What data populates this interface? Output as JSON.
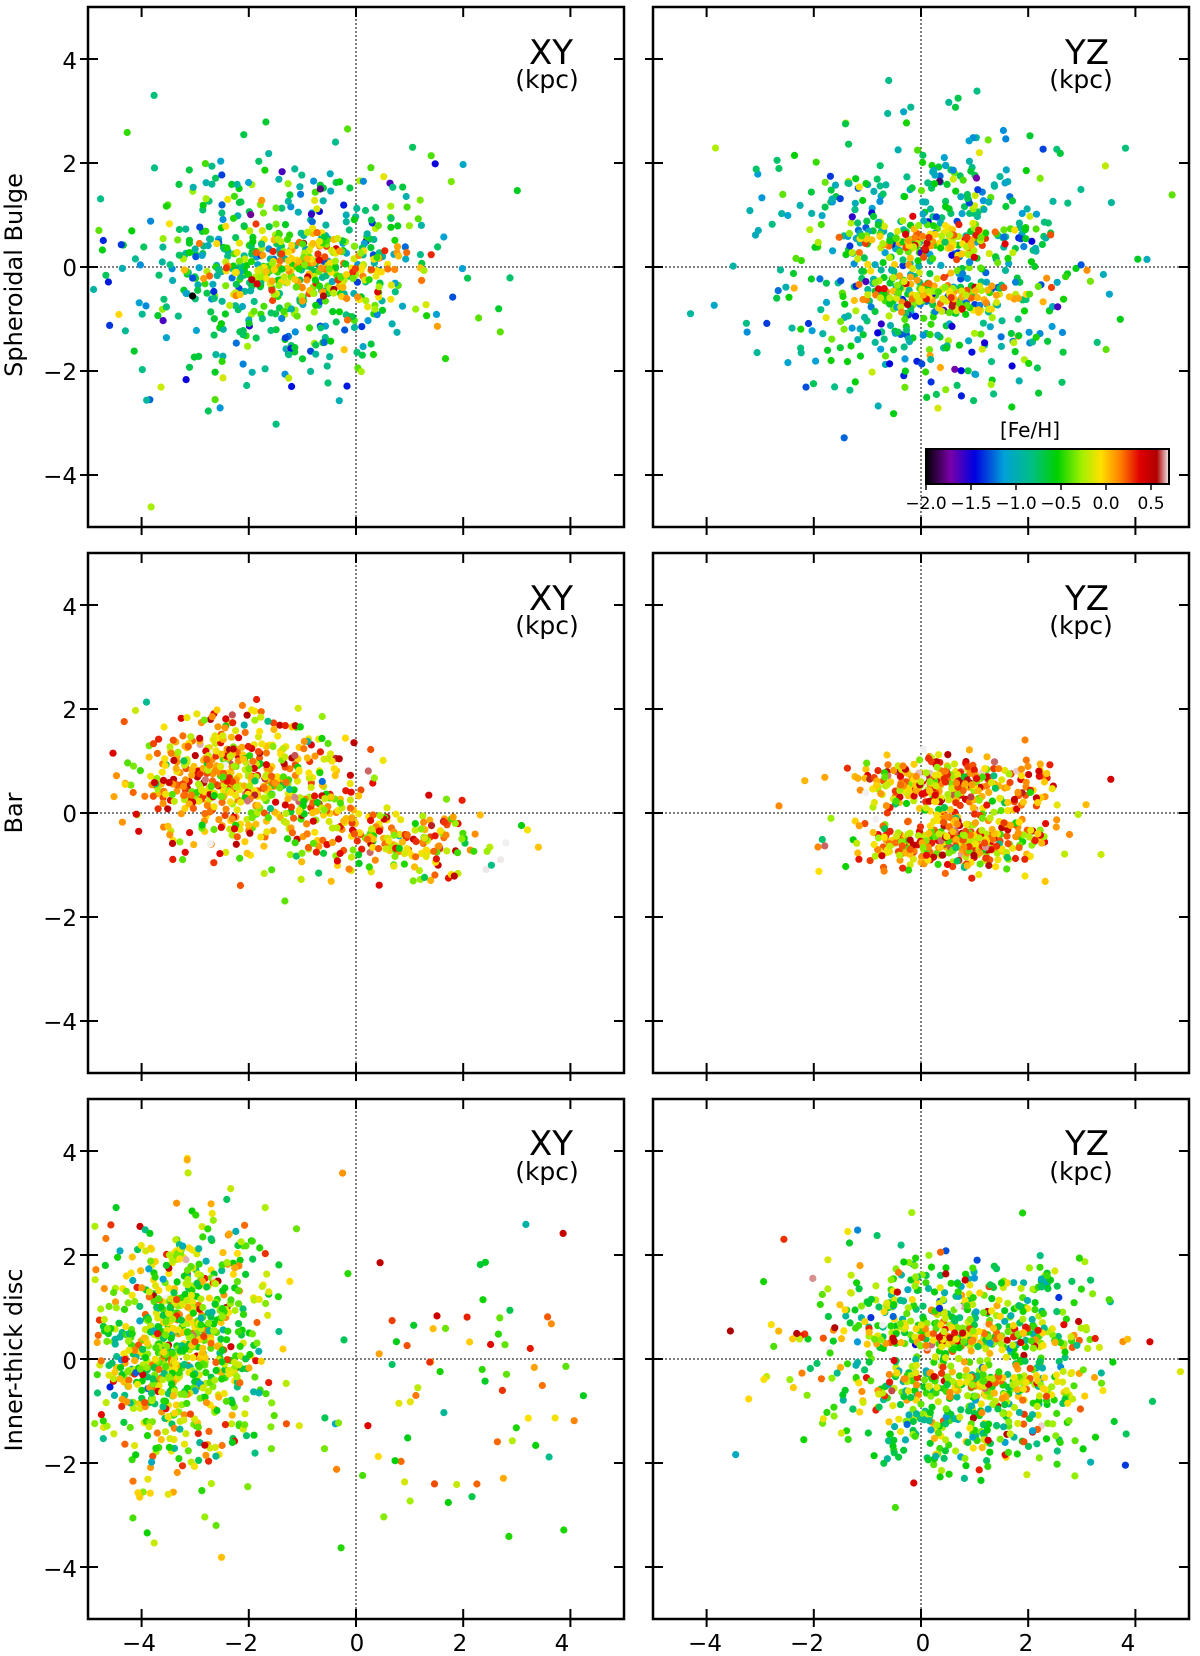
{
  "chart_data": {
    "type": "scatter",
    "rows": [
      "Spheroidal Bulge",
      "Bar",
      "Inner-thick disc"
    ],
    "panel_title_XY": "XY",
    "panel_title_YZ": "YZ",
    "unit": "(kpc)",
    "xlim": [
      -5,
      5
    ],
    "ylim": [
      -5,
      5
    ],
    "ticks": [
      -4,
      -2,
      0,
      2,
      4
    ],
    "tick_labels": [
      "−4",
      "−2",
      "0",
      "2",
      "4"
    ],
    "grid": false,
    "reference_lines": "dotted lines at x=0 and y=0",
    "colorbar": {
      "label": "[Fe/H]",
      "range": [
        -2.0,
        0.7
      ],
      "ticks": [
        -2.0,
        -1.5,
        -1.0,
        -0.5,
        0.0,
        0.5
      ],
      "tick_labels": [
        "−2.0",
        "−1.5",
        "−1.0",
        "−0.5",
        "0.0",
        "0.5"
      ],
      "colormap": [
        "#000000",
        "#7a00a8",
        "#0000e0",
        "#00a0d8",
        "#00c080",
        "#00d000",
        "#a0f000",
        "#ffe000",
        "#ff8000",
        "#e00000",
        "#b00000",
        "#f0f0f0"
      ],
      "location": "lower-right of Spheroidal Bulge YZ panel"
    },
    "panels": [
      {
        "row": "Spheroidal Bulge",
        "view": "XY",
        "clusters": [
          {
            "cx": -1.5,
            "cy": 0.0,
            "sx": 1.5,
            "sy": 1.1,
            "n": 520,
            "feh_mean": -0.75,
            "feh_sd": 0.35
          },
          {
            "cx": -0.8,
            "cy": 0.0,
            "sx": 0.9,
            "sy": 0.4,
            "n": 220,
            "feh_mean": -0.1,
            "feh_sd": 0.3
          }
        ]
      },
      {
        "row": "Spheroidal Bulge",
        "view": "YZ",
        "clusters": [
          {
            "cx": 0.2,
            "cy": 1.0,
            "sx": 1.4,
            "sy": 0.9,
            "n": 300,
            "feh_mean": -0.8,
            "feh_sd": 0.35
          },
          {
            "cx": 0.2,
            "cy": -0.9,
            "sx": 1.4,
            "sy": 0.9,
            "n": 300,
            "feh_mean": -0.8,
            "feh_sd": 0.35
          },
          {
            "cx": 0.2,
            "cy": 0.5,
            "sx": 0.8,
            "sy": 0.2,
            "n": 130,
            "feh_mean": -0.05,
            "feh_sd": 0.3
          },
          {
            "cx": 0.2,
            "cy": -0.5,
            "sx": 0.8,
            "sy": 0.2,
            "n": 130,
            "feh_mean": -0.05,
            "feh_sd": 0.3
          }
        ]
      },
      {
        "row": "Bar",
        "view": "XY",
        "clusters": [
          {
            "cx": -2.5,
            "cy": 0.7,
            "sx": 0.9,
            "sy": 0.6,
            "n": 450,
            "feh_mean": 0.05,
            "feh_sd": 0.3
          },
          {
            "cx": 0.8,
            "cy": -0.5,
            "sx": 1.0,
            "sy": 0.3,
            "n": 180,
            "feh_mean": 0.0,
            "feh_sd": 0.3
          },
          {
            "cx": -1.0,
            "cy": 0.2,
            "sx": 0.9,
            "sy": 0.6,
            "n": 160,
            "feh_mean": -0.1,
            "feh_sd": 0.35
          }
        ]
      },
      {
        "row": "Bar",
        "view": "YZ",
        "clusters": [
          {
            "cx": 0.6,
            "cy": 0.55,
            "sx": 0.9,
            "sy": 0.28,
            "n": 330,
            "feh_mean": 0.05,
            "feh_sd": 0.3
          },
          {
            "cx": 0.6,
            "cy": -0.55,
            "sx": 0.9,
            "sy": 0.28,
            "n": 330,
            "feh_mean": 0.05,
            "feh_sd": 0.3
          }
        ]
      },
      {
        "row": "Inner-thick disc",
        "view": "XY",
        "clusters": [
          {
            "cx": -3.3,
            "cy": 0.3,
            "sx": 0.8,
            "sy": 1.2,
            "n": 850,
            "feh_mean": -0.3,
            "feh_sd": 0.35
          },
          {
            "cx": 1.8,
            "cy": -0.5,
            "sx": 1.4,
            "sy": 1.6,
            "n": 80,
            "feh_mean": -0.2,
            "feh_sd": 0.4
          }
        ]
      },
      {
        "row": "Inner-thick disc",
        "view": "YZ",
        "clusters": [
          {
            "cx": 0.8,
            "cy": 0.9,
            "sx": 1.3,
            "sy": 0.6,
            "n": 380,
            "feh_mean": -0.45,
            "feh_sd": 0.35
          },
          {
            "cx": 0.8,
            "cy": -0.9,
            "sx": 1.3,
            "sy": 0.6,
            "n": 380,
            "feh_mean": -0.45,
            "feh_sd": 0.35
          },
          {
            "cx": 0.8,
            "cy": 0.45,
            "sx": 1.4,
            "sy": 0.15,
            "n": 120,
            "feh_mean": 0.0,
            "feh_sd": 0.3
          },
          {
            "cx": 0.8,
            "cy": -0.45,
            "sx": 1.4,
            "sy": 0.15,
            "n": 120,
            "feh_mean": 0.0,
            "feh_sd": 0.3
          }
        ]
      }
    ]
  }
}
